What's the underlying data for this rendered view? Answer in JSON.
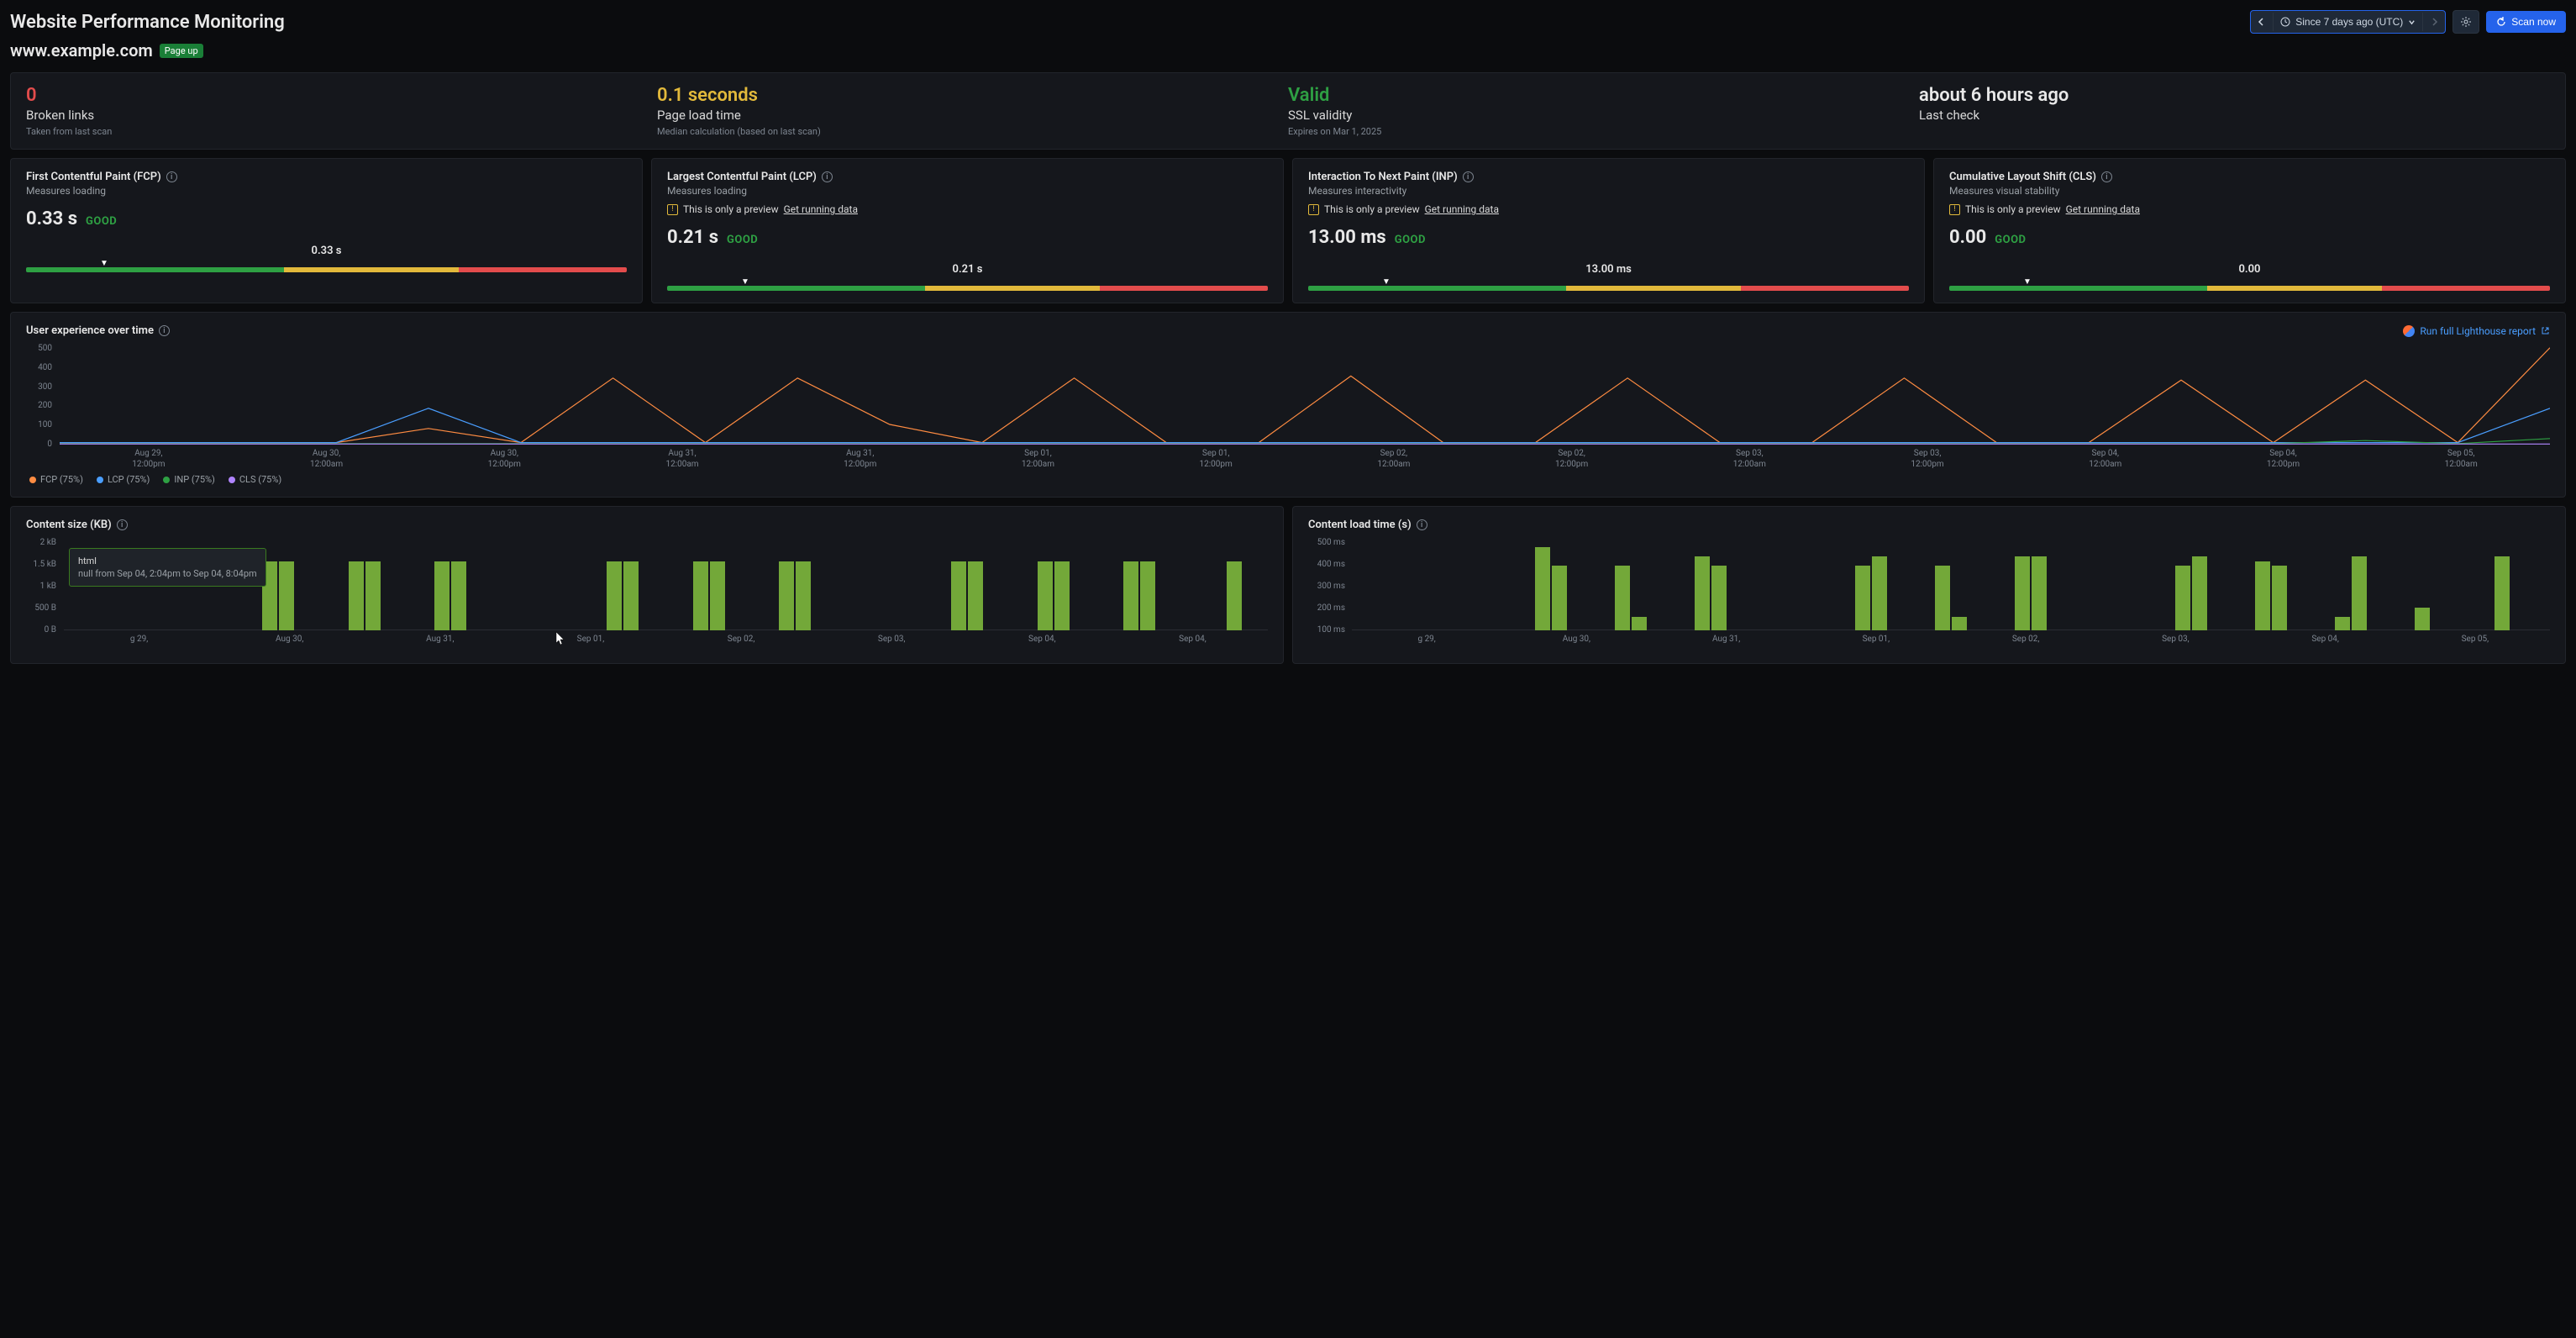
{
  "header": {
    "title": "Website Performance Monitoring",
    "time_range": "Since 7 days ago (UTC)",
    "scan_now": "Scan now"
  },
  "site": {
    "domain": "www.example.com",
    "status_badge": "Page up"
  },
  "summary": {
    "broken_links": {
      "value": "0",
      "label": "Broken links",
      "sub": "Taken from last scan",
      "color": "#e34c4c"
    },
    "page_load": {
      "value": "0.1 seconds",
      "label": "Page load time",
      "sub": "Median calculation (based on last scan)",
      "color": "#e2b93b"
    },
    "ssl": {
      "value": "Valid",
      "label": "SSL validity",
      "sub": "Expires on Mar 1, 2025",
      "color": "#2ea043"
    },
    "last_check": {
      "value": "about 6 hours ago",
      "label": "Last check"
    }
  },
  "metrics": [
    {
      "title": "First Contentful Paint (FCP)",
      "sub": "Measures loading",
      "preview": false,
      "value": "0.33 s",
      "status": "GOOD",
      "gauge_label": "0.33 s",
      "pointer_pct": 13,
      "segments": [
        43,
        29,
        28
      ]
    },
    {
      "title": "Largest Contentful Paint (LCP)",
      "sub": "Measures loading",
      "preview": true,
      "value": "0.21 s",
      "status": "GOOD",
      "gauge_label": "0.21 s",
      "pointer_pct": 13,
      "segments": [
        43,
        29,
        28
      ]
    },
    {
      "title": "Interaction To Next Paint (INP)",
      "sub": "Measures interactivity",
      "preview": true,
      "value": "13.00 ms",
      "status": "GOOD",
      "gauge_label": "13.00 ms",
      "pointer_pct": 13,
      "segments": [
        43,
        29,
        28
      ]
    },
    {
      "title": "Cumulative Layout Shift (CLS)",
      "sub": "Measures visual stability",
      "preview": true,
      "value": "0.00",
      "status": "GOOD",
      "gauge_label": "0.00",
      "pointer_pct": 13,
      "segments": [
        43,
        29,
        28
      ]
    }
  ],
  "preview_text": "This is only a preview",
  "preview_link": "Get running data",
  "ux_chart": {
    "title": "User experience over time",
    "link": "Run full Lighthouse report",
    "y_ticks": [
      "500",
      "400",
      "300",
      "200",
      "100",
      "0"
    ],
    "y_max": 500,
    "x_ticks": [
      "Aug 29,\n12:00pm",
      "Aug 30,\n12:00am",
      "Aug 30,\n12:00pm",
      "Aug 31,\n12:00am",
      "Aug 31,\n12:00pm",
      "Sep 01,\n12:00am",
      "Sep 01,\n12:00pm",
      "Sep 02,\n12:00am",
      "Sep 02,\n12:00pm",
      "Sep 03,\n12:00am",
      "Sep 03,\n12:00pm",
      "Sep 04,\n12:00am",
      "Sep 04,\n12:00pm",
      "Sep 05,\n12:00am"
    ],
    "series": [
      {
        "name": "FCP (75%)",
        "color": "#ff8c42",
        "values": [
          10,
          10,
          10,
          10,
          80,
          10,
          330,
          10,
          330,
          100,
          10,
          330,
          10,
          10,
          340,
          10,
          10,
          330,
          10,
          10,
          330,
          10,
          10,
          320,
          10,
          320,
          10,
          480
        ]
      },
      {
        "name": "LCP (75%)",
        "color": "#4a9eff",
        "values": [
          10,
          10,
          10,
          10,
          180,
          10,
          10,
          10,
          10,
          10,
          10,
          10,
          10,
          10,
          10,
          10,
          10,
          10,
          10,
          10,
          10,
          10,
          10,
          10,
          10,
          10,
          10,
          180
        ]
      },
      {
        "name": "INP (75%)",
        "color": "#2ea043",
        "values": [
          5,
          5,
          5,
          5,
          5,
          5,
          5,
          5,
          5,
          5,
          5,
          5,
          5,
          5,
          5,
          5,
          5,
          5,
          5,
          5,
          5,
          5,
          5,
          5,
          5,
          20,
          5,
          30
        ]
      },
      {
        "name": "CLS (75%)",
        "color": "#b084ff",
        "values": [
          3,
          3,
          3,
          3,
          3,
          3,
          3,
          3,
          3,
          3,
          3,
          3,
          3,
          3,
          3,
          3,
          3,
          3,
          3,
          3,
          3,
          3,
          3,
          3,
          3,
          3,
          3,
          3
        ]
      }
    ]
  },
  "content_size": {
    "title": "Content size (KB)",
    "y_ticks": [
      "2 kB",
      "1.5 kB",
      "1 kB",
      "500 B",
      "0 B"
    ],
    "x_ticks": [
      "g 29,",
      "Aug 30,",
      "Aug 31,",
      "Sep 01,",
      "Sep 02,",
      "Sep 03,",
      "Sep 04,",
      "Sep 04,"
    ],
    "bar_color": "#73a839",
    "groups": [
      [
        0,
        0
      ],
      [
        0,
        0
      ],
      [
        75,
        75
      ],
      [
        75,
        75
      ],
      [
        75,
        75
      ],
      [
        0,
        0
      ],
      [
        75,
        75
      ],
      [
        75,
        75
      ],
      [
        75,
        75
      ],
      [
        0,
        0
      ],
      [
        75,
        75
      ],
      [
        75,
        75
      ],
      [
        75,
        75
      ],
      [
        0,
        75
      ]
    ],
    "tooltip": {
      "title": "html",
      "sub": "null from Sep 04, 2:04pm to Sep 04, 8:04pm"
    }
  },
  "content_load": {
    "title": "Content load time (s)",
    "y_ticks": [
      "500 ms",
      "400 ms",
      "300 ms",
      "200 ms",
      "100 ms"
    ],
    "x_ticks": [
      "g 29,",
      "Aug 30,",
      "Aug 31,",
      "Sep 01,",
      "Sep 02,",
      "Sep 03,",
      "Sep 04,",
      "Sep 05,"
    ],
    "bar_color": "#73a839",
    "groups": [
      [
        0,
        0
      ],
      [
        0,
        0
      ],
      [
        90,
        70
      ],
      [
        70,
        15
      ],
      [
        80,
        70
      ],
      [
        0,
        0
      ],
      [
        70,
        80
      ],
      [
        70,
        15
      ],
      [
        80,
        80
      ],
      [
        0,
        0
      ],
      [
        70,
        80
      ],
      [
        75,
        70
      ],
      [
        15,
        80
      ],
      [
        25,
        0
      ],
      [
        80,
        0
      ]
    ]
  }
}
